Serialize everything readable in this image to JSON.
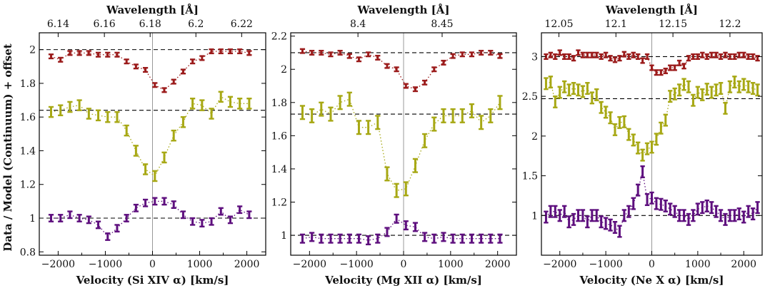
{
  "ylabel": "Data / Model (Continuum) + offset",
  "colors": {
    "red": "#9b1b1b",
    "olive": "#a7a814",
    "purple": "#5e0f7e",
    "axis": "#111111",
    "zero_line": "#999999"
  },
  "chart_data": [
    {
      "type": "scatter",
      "line": "Si XIV α",
      "xlabel": "Velocity (Si XIV α) [km/s]",
      "xlim": [
        -2400,
        2400
      ],
      "ylim": [
        0.78,
        2.1
      ],
      "x_ticks": [
        -2000,
        -1000,
        0,
        1000,
        2000
      ],
      "y_ticks": [
        0.8,
        1.0,
        1.2,
        1.4,
        1.6,
        1.8,
        2.0
      ],
      "y_tick_labels": [
        "0.8",
        "1",
        "1.2",
        "1.4",
        "1.6",
        "1.8",
        "2"
      ],
      "top_label": "Wavelength [Å]",
      "top_ticks": [
        {
          "label": "6.14",
          "velocity": -2000
        },
        {
          "label": "6.16",
          "velocity": -1020
        },
        {
          "label": "6.18",
          "velocity": -50
        },
        {
          "label": "6.2",
          "velocity": 920
        },
        {
          "label": "6.22",
          "velocity": 1890
        }
      ],
      "baselines": [
        2.0,
        1.64,
        1.0
      ],
      "x": [
        -2150,
        -1950,
        -1750,
        -1550,
        -1350,
        -1150,
        -950,
        -750,
        -550,
        -350,
        -150,
        50,
        250,
        450,
        650,
        850,
        1050,
        1250,
        1450,
        1650,
        1850,
        2050
      ],
      "series": [
        {
          "color": "red",
          "offset": 1.0,
          "values": [
            1.96,
            1.94,
            1.98,
            1.98,
            1.98,
            1.97,
            1.97,
            1.97,
            1.93,
            1.9,
            1.88,
            1.79,
            1.76,
            1.81,
            1.87,
            1.93,
            1.95,
            1.99,
            1.99,
            1.99,
            1.99,
            1.98
          ],
          "errors": [
            0.012,
            0.012,
            0.012,
            0.012,
            0.012,
            0.012,
            0.012,
            0.012,
            0.012,
            0.012,
            0.012,
            0.012,
            0.012,
            0.012,
            0.012,
            0.012,
            0.012,
            0.012,
            0.012,
            0.012,
            0.012,
            0.012
          ]
        },
        {
          "color": "olive",
          "offset": 0.64,
          "values": [
            1.63,
            1.64,
            1.66,
            1.67,
            1.62,
            1.61,
            1.6,
            1.6,
            1.52,
            1.4,
            1.29,
            1.25,
            1.36,
            1.49,
            1.57,
            1.68,
            1.67,
            1.62,
            1.72,
            1.69,
            1.68,
            1.68
          ],
          "errors": [
            0.03,
            0.03,
            0.03,
            0.03,
            0.03,
            0.03,
            0.03,
            0.03,
            0.03,
            0.03,
            0.03,
            0.03,
            0.03,
            0.03,
            0.03,
            0.03,
            0.03,
            0.03,
            0.03,
            0.03,
            0.03,
            0.03
          ]
        },
        {
          "color": "purple",
          "offset": 0.0,
          "values": [
            1.0,
            1.0,
            1.02,
            1.0,
            0.99,
            0.96,
            0.89,
            0.94,
            1.0,
            1.06,
            1.09,
            1.1,
            1.1,
            1.08,
            1.02,
            0.98,
            0.97,
            0.98,
            1.04,
            0.99,
            1.05,
            1.02
          ],
          "errors": [
            0.02,
            0.02,
            0.02,
            0.02,
            0.02,
            0.02,
            0.02,
            0.02,
            0.02,
            0.02,
            0.02,
            0.02,
            0.02,
            0.02,
            0.02,
            0.02,
            0.02,
            0.02,
            0.02,
            0.02,
            0.02,
            0.02
          ]
        }
      ]
    },
    {
      "type": "scatter",
      "line": "Mg XII α",
      "xlabel": "Velocity (Mg XII α) [km/s]",
      "xlim": [
        -2400,
        2400
      ],
      "ylim": [
        0.88,
        2.22
      ],
      "x_ticks": [
        -2000,
        -1000,
        0,
        1000,
        2000
      ],
      "y_ticks": [
        1.0,
        1.2,
        1.4,
        1.6,
        1.8,
        2.0,
        2.2
      ],
      "y_tick_labels": [
        "1",
        "1.2",
        "1.4",
        "1.6",
        "1.8",
        "2",
        "2.2"
      ],
      "top_label": "Wavelength [Å]",
      "top_ticks": [
        {
          "label": "8.4",
          "velocity": -970
        },
        {
          "label": "8.45",
          "velocity": 820
        }
      ],
      "baselines": [
        2.1,
        1.73,
        1.0
      ],
      "x": [
        -2150,
        -1950,
        -1750,
        -1550,
        -1350,
        -1150,
        -950,
        -750,
        -550,
        -350,
        -150,
        50,
        250,
        450,
        650,
        850,
        1050,
        1250,
        1450,
        1650,
        1850,
        2050
      ],
      "series": [
        {
          "color": "red",
          "offset": 1.1,
          "values": [
            2.11,
            2.1,
            2.1,
            2.09,
            2.1,
            2.08,
            2.06,
            2.09,
            2.07,
            2.02,
            2.0,
            1.9,
            1.88,
            1.92,
            2.0,
            2.04,
            2.08,
            2.09,
            2.09,
            2.1,
            2.1,
            2.08
          ],
          "errors": [
            0.012,
            0.012,
            0.012,
            0.012,
            0.012,
            0.012,
            0.012,
            0.012,
            0.012,
            0.012,
            0.012,
            0.012,
            0.012,
            0.012,
            0.012,
            0.012,
            0.012,
            0.012,
            0.012,
            0.012,
            0.012,
            0.012
          ]
        },
        {
          "color": "olive",
          "offset": 0.73,
          "values": [
            1.74,
            1.72,
            1.76,
            1.73,
            1.8,
            1.82,
            1.65,
            1.65,
            1.68,
            1.37,
            1.27,
            1.28,
            1.42,
            1.57,
            1.67,
            1.72,
            1.72,
            1.72,
            1.75,
            1.68,
            1.72,
            1.8
          ],
          "errors": [
            0.04,
            0.04,
            0.04,
            0.04,
            0.04,
            0.04,
            0.04,
            0.04,
            0.04,
            0.04,
            0.04,
            0.04,
            0.04,
            0.04,
            0.04,
            0.04,
            0.04,
            0.04,
            0.04,
            0.04,
            0.04,
            0.04
          ]
        },
        {
          "color": "purple",
          "offset": 0.0,
          "values": [
            0.98,
            0.99,
            0.98,
            0.98,
            0.98,
            0.98,
            0.98,
            0.97,
            0.98,
            1.02,
            1.1,
            1.06,
            1.05,
            0.99,
            0.98,
            0.99,
            0.98,
            0.98,
            0.98,
            0.98,
            0.98,
            0.98
          ],
          "errors": [
            0.025,
            0.025,
            0.025,
            0.025,
            0.025,
            0.025,
            0.025,
            0.025,
            0.025,
            0.025,
            0.025,
            0.025,
            0.025,
            0.025,
            0.025,
            0.025,
            0.025,
            0.025,
            0.025,
            0.025,
            0.025,
            0.025
          ]
        }
      ]
    },
    {
      "type": "scatter",
      "line": "Ne X α",
      "xlabel": "Velocity (Ne X α) [km/s]",
      "xlim": [
        -2400,
        2400
      ],
      "ylim": [
        0.5,
        3.3
      ],
      "x_ticks": [
        -2000,
        -1000,
        0,
        1000,
        2000
      ],
      "y_ticks": [
        1.0,
        1.5,
        2.0,
        2.5,
        3.0
      ],
      "y_tick_labels": [
        "1",
        "1.5",
        "2",
        "2.5",
        "3"
      ],
      "top_label": "Wavelength [Å]",
      "top_ticks": [
        {
          "label": "12.05",
          "velocity": -2020
        },
        {
          "label": "12.1",
          "velocity": -780
        },
        {
          "label": "12.15",
          "velocity": 460
        },
        {
          "label": "12.2",
          "velocity": 1700
        }
      ],
      "baselines": [
        3.0,
        2.47,
        1.0
      ],
      "x": [
        -2300,
        -2200,
        -2100,
        -2000,
        -1900,
        -1800,
        -1700,
        -1600,
        -1500,
        -1400,
        -1300,
        -1200,
        -1100,
        -1000,
        -900,
        -800,
        -700,
        -600,
        -500,
        -400,
        -300,
        -200,
        -100,
        0,
        100,
        200,
        300,
        400,
        500,
        600,
        700,
        800,
        900,
        1000,
        1100,
        1200,
        1300,
        1400,
        1500,
        1600,
        1700,
        1800,
        1900,
        2000,
        2100,
        2200,
        2300
      ],
      "series": [
        {
          "color": "red",
          "offset": 2.0,
          "values": [
            3.0,
            3.02,
            3.0,
            3.05,
            3.0,
            3.0,
            2.98,
            3.05,
            3.02,
            3.02,
            3.02,
            3.02,
            3.0,
            3.02,
            2.98,
            2.96,
            2.98,
            3.03,
            3.0,
            3.02,
            3.0,
            2.95,
            3.0,
            2.86,
            2.8,
            2.8,
            2.82,
            2.86,
            2.86,
            2.92,
            2.88,
            2.98,
            3.0,
            3.0,
            3.02,
            3.0,
            3.02,
            3.02,
            3.0,
            3.02,
            3.0,
            3.0,
            3.02,
            3.02,
            3.0,
            3.0,
            2.98
          ],
          "errors": [
            0.03,
            0.03,
            0.03,
            0.03,
            0.03,
            0.03,
            0.03,
            0.03,
            0.03,
            0.03,
            0.03,
            0.03,
            0.03,
            0.03,
            0.03,
            0.03,
            0.03,
            0.03,
            0.03,
            0.03,
            0.03,
            0.03,
            0.03,
            0.03,
            0.03,
            0.03,
            0.03,
            0.03,
            0.03,
            0.03,
            0.03,
            0.03,
            0.03,
            0.03,
            0.03,
            0.03,
            0.03,
            0.03,
            0.03,
            0.03,
            0.03,
            0.03,
            0.03,
            0.03,
            0.03,
            0.03,
            0.03
          ]
        },
        {
          "color": "olive",
          "offset": 1.47,
          "values": [
            2.66,
            2.68,
            2.43,
            2.55,
            2.62,
            2.58,
            2.6,
            2.58,
            2.56,
            2.6,
            2.48,
            2.52,
            2.36,
            2.3,
            2.23,
            2.08,
            2.17,
            2.18,
            2.02,
            1.95,
            1.85,
            1.76,
            1.84,
            1.86,
            1.96,
            2.1,
            2.2,
            2.5,
            2.53,
            2.58,
            2.65,
            2.62,
            2.45,
            2.55,
            2.52,
            2.59,
            2.55,
            2.58,
            2.6,
            2.35,
            2.62,
            2.68,
            2.62,
            2.65,
            2.62,
            2.6,
            2.58
          ],
          "errors": [
            0.07,
            0.07,
            0.07,
            0.07,
            0.07,
            0.07,
            0.07,
            0.07,
            0.07,
            0.07,
            0.07,
            0.07,
            0.07,
            0.07,
            0.07,
            0.07,
            0.07,
            0.07,
            0.07,
            0.07,
            0.07,
            0.07,
            0.07,
            0.07,
            0.07,
            0.07,
            0.07,
            0.07,
            0.07,
            0.07,
            0.07,
            0.07,
            0.07,
            0.07,
            0.07,
            0.07,
            0.07,
            0.07,
            0.07,
            0.07,
            0.07,
            0.07,
            0.07,
            0.07,
            0.07,
            0.07,
            0.07
          ]
        },
        {
          "color": "purple",
          "offset": 0.0,
          "values": [
            0.98,
            1.05,
            1.05,
            1.0,
            1.05,
            0.92,
            0.95,
            1.0,
            1.0,
            0.92,
            1.0,
            1.0,
            0.92,
            0.9,
            0.88,
            0.85,
            0.8,
            1.0,
            1.05,
            1.15,
            1.32,
            1.55,
            1.2,
            1.22,
            1.15,
            1.14,
            1.12,
            1.08,
            1.05,
            1.0,
            1.0,
            0.95,
            1.0,
            1.08,
            1.1,
            1.12,
            1.1,
            1.05,
            1.0,
            0.95,
            1.0,
            1.0,
            1.02,
            0.98,
            1.05,
            1.02,
            1.1
          ],
          "errors": [
            0.07,
            0.07,
            0.07,
            0.07,
            0.07,
            0.07,
            0.07,
            0.07,
            0.07,
            0.07,
            0.07,
            0.07,
            0.07,
            0.07,
            0.07,
            0.07,
            0.07,
            0.07,
            0.07,
            0.07,
            0.07,
            0.07,
            0.07,
            0.07,
            0.07,
            0.07,
            0.07,
            0.07,
            0.07,
            0.07,
            0.07,
            0.07,
            0.07,
            0.07,
            0.07,
            0.07,
            0.07,
            0.07,
            0.07,
            0.07,
            0.07,
            0.07,
            0.07,
            0.07,
            0.07,
            0.07,
            0.07
          ]
        }
      ]
    }
  ]
}
